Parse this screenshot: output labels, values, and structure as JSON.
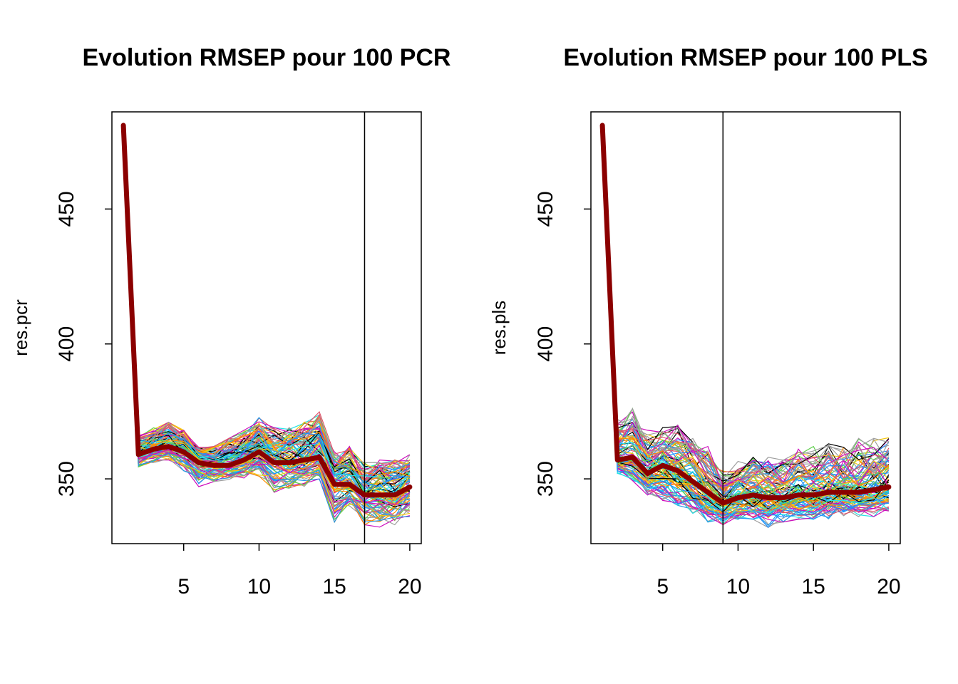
{
  "chart_data": [
    {
      "type": "line",
      "title": "Evolution RMSEP pour 100 PCR",
      "xlabel": "",
      "ylabel": "res.pcr",
      "xlim": [
        1,
        20
      ],
      "ylim": [
        326,
        486
      ],
      "x_ticks": [
        5,
        10,
        15,
        20
      ],
      "y_ticks": [
        350,
        400,
        450
      ],
      "vline_x": 17,
      "n_runs": 100,
      "x": [
        1,
        2,
        3,
        4,
        5,
        6,
        7,
        8,
        9,
        10,
        11,
        12,
        13,
        14,
        15,
        16,
        17,
        18,
        19,
        20
      ],
      "mean_series": {
        "color": "#8B0000",
        "values": [
          481,
          359,
          361,
          362,
          360,
          356,
          355,
          355,
          357,
          360,
          356,
          356,
          357,
          358,
          348,
          348,
          344,
          344,
          344,
          347
        ]
      },
      "run_spread": {
        "lower": [
          481,
          354,
          356,
          357,
          353,
          347,
          349,
          349,
          350,
          351,
          345,
          345,
          347,
          350,
          334,
          340,
          333,
          332,
          333,
          336
        ],
        "upper": [
          481,
          366,
          369,
          371,
          368,
          362,
          362,
          365,
          368,
          373,
          369,
          369,
          371,
          376,
          360,
          362,
          356,
          357,
          357,
          359
        ]
      }
    },
    {
      "type": "line",
      "title": "Evolution RMSEP pour 100 PLS",
      "xlabel": "",
      "ylabel": "res.pls",
      "xlim": [
        1,
        20
      ],
      "ylim": [
        326,
        486
      ],
      "x_ticks": [
        5,
        10,
        15,
        20
      ],
      "y_ticks": [
        350,
        400,
        450
      ],
      "vline_x": 9,
      "n_runs": 100,
      "x": [
        1,
        2,
        3,
        4,
        5,
        6,
        7,
        8,
        9,
        10,
        11,
        12,
        13,
        14,
        15,
        16,
        17,
        18,
        19,
        20
      ],
      "mean_series": {
        "color": "#8B0000",
        "values": [
          481,
          357,
          358,
          352,
          355,
          353,
          349,
          345,
          341,
          343,
          344,
          343,
          343,
          344,
          344,
          345,
          345,
          345,
          346,
          347
        ]
      },
      "run_spread": {
        "lower": [
          481,
          352,
          349,
          344,
          342,
          340,
          337,
          334,
          332,
          335,
          335,
          332,
          334,
          335,
          335,
          335,
          336,
          336,
          336,
          337
        ],
        "upper": [
          481,
          372,
          376,
          368,
          369,
          370,
          367,
          362,
          354,
          357,
          358,
          358,
          357,
          361,
          362,
          363,
          364,
          365,
          365,
          366
        ]
      }
    }
  ],
  "palette": [
    "#000000",
    "#DF536B",
    "#61D04F",
    "#2297E6",
    "#28E2E5",
    "#CD0BBC",
    "#F5C710",
    "#9E9E9E",
    "#FF8C00",
    "#1E90FF"
  ]
}
